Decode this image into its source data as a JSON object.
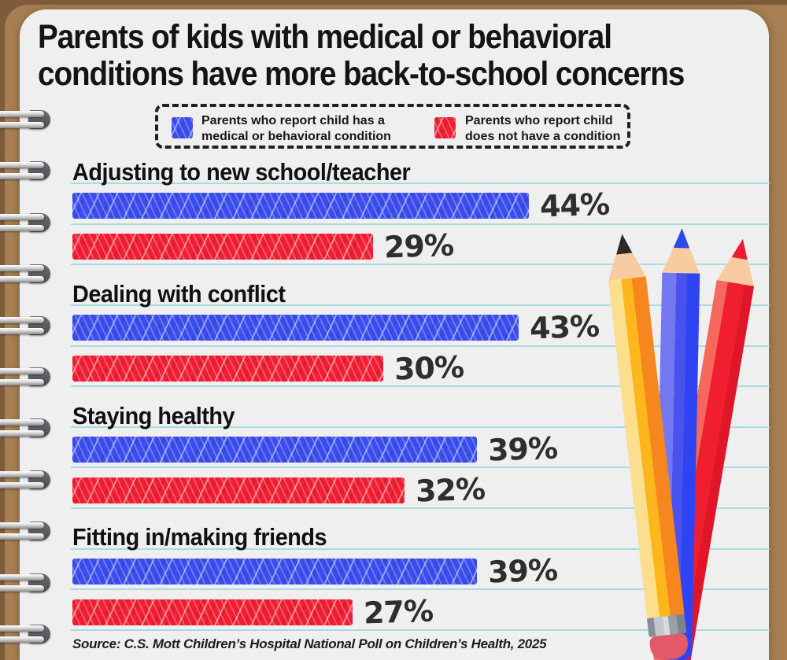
{
  "page": {
    "title": "Parents of kids with medical or behavioral conditions have more back-to-school concerns",
    "title_lines": [
      "Parents of kids with medical or behavioral",
      "conditions have more back-to-school concerns"
    ],
    "source": "Source: C.S. Mott Children’s Hospital National Poll on Children’s Health, 2025"
  },
  "legend": {
    "items": [
      {
        "lines": [
          "Parents who report child has a",
          "medical or behavioral condition"
        ],
        "label": "Parents who report child has a medical or behavioral condition",
        "color": "#3a4ced"
      },
      {
        "lines": [
          "Parents who report child",
          "does not have a condition"
        ],
        "label": "Parents who report child does not have a condition",
        "color": "#f01d33"
      }
    ]
  },
  "chart_data": {
    "type": "bar",
    "orientation": "horizontal",
    "unit": "percent",
    "title": "Parents of kids with medical or behavioral conditions have more back-to-school concerns",
    "categories": [
      "Adjusting to new school/teacher",
      "Dealing with conflict",
      "Staying healthy",
      "Fitting in/making friends"
    ],
    "series": [
      {
        "name": "Parents who report child has a medical or behavioral condition",
        "color": "#3a4ced",
        "values": [
          44,
          43,
          39,
          39
        ],
        "labels": [
          "44%",
          "43%",
          "39%",
          "39%"
        ]
      },
      {
        "name": "Parents who report child does not have a condition",
        "color": "#f01d33",
        "values": [
          29,
          30,
          32,
          27
        ],
        "labels": [
          "29%",
          "30%",
          "32%",
          "27%"
        ]
      }
    ],
    "xlim": [
      0,
      70
    ],
    "value_labels": true,
    "grid": "ruled-notebook-lines",
    "legend_position": "top"
  },
  "decor": {
    "style": "spiral notebook on brown cover with three colored pencils",
    "pencils": [
      "yellow",
      "blue",
      "red"
    ],
    "accent_line_color": "#a9dce2"
  }
}
